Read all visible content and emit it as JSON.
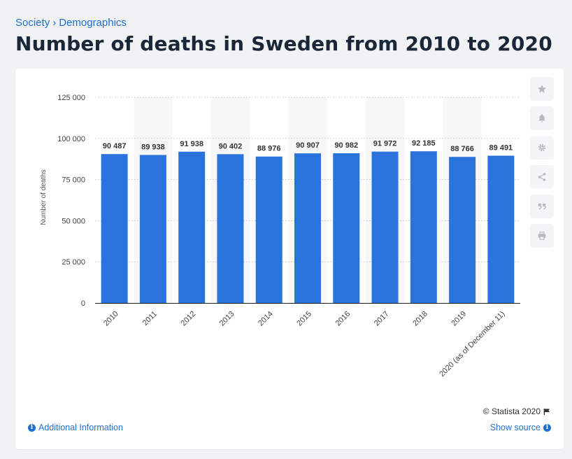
{
  "breadcrumb": {
    "items": [
      "Society",
      "Demographics"
    ],
    "separator": "›"
  },
  "page_title": "Number of deaths in Sweden from 2010 to 2020",
  "colors": {
    "bar": "#2a73dc",
    "accent": "#1f6fd0",
    "band": "#f7f7f7"
  },
  "toolbar": {
    "icons": [
      "star-icon",
      "bell-icon",
      "gear-icon",
      "share-icon",
      "quote-icon",
      "print-icon"
    ]
  },
  "footer": {
    "credit": "© Statista 2020",
    "additional_info": "Additional Information",
    "show_source": "Show source"
  },
  "chart_data": {
    "type": "bar",
    "categories": [
      "2010",
      "2011",
      "2012",
      "2013",
      "2014",
      "2015",
      "2016",
      "2017",
      "2018",
      "2019",
      "2020 (as of December 11)"
    ],
    "values": [
      90487,
      89938,
      91938,
      90402,
      88976,
      90907,
      90982,
      91972,
      92185,
      88766,
      89491
    ],
    "value_labels": [
      "90 487",
      "89 938",
      "91 938",
      "90 402",
      "88 976",
      "90 907",
      "90 982",
      "91 972",
      "92 185",
      "88 766",
      "89 491"
    ],
    "title": "",
    "xlabel": "",
    "ylabel": "Number of deaths",
    "ylim": [
      0,
      125000
    ],
    "yticks": [
      0,
      25000,
      50000,
      75000,
      100000,
      125000
    ],
    "ytick_labels": [
      "0",
      "25 000",
      "50 000",
      "75 000",
      "100 000",
      "125 000"
    ],
    "grid": true,
    "legend": "none"
  }
}
